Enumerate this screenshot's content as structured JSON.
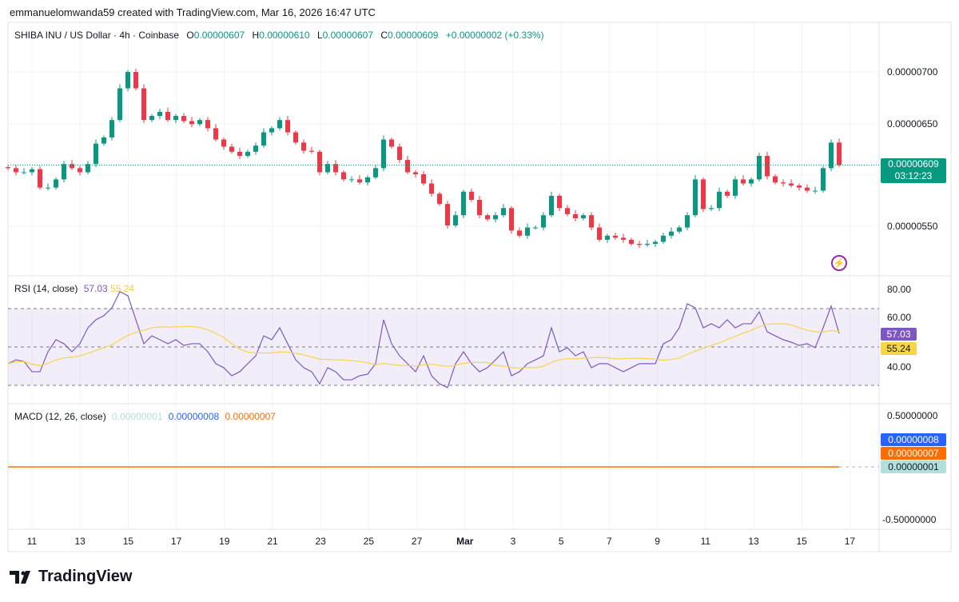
{
  "credit": "emmanuelomwanda59 created with TradingView.com, Mar 16, 2026 16:47 UTC",
  "legend": {
    "symbol": "SHIBA INU / US Dollar · 4h · Coinbase",
    "o_label": "O",
    "o": "0.00000607",
    "h_label": "H",
    "h": "0.00000610",
    "l_label": "L",
    "l": "0.00000607",
    "c_label": "C",
    "c": "0.00000609",
    "change": "+0.00000002 (+0.33%)"
  },
  "price_axis": [
    "0.00000700",
    "0.00000650",
    "0.00000550"
  ],
  "last_price": {
    "value": "0.00000609",
    "countdown": "03:12:23",
    "color": "#089981"
  },
  "rsi": {
    "title": "RSI (14, close)",
    "value": "57.03",
    "ma_value": "55.24",
    "axis": [
      "80.00",
      "60.00",
      "40.00"
    ],
    "line_color": "#7e57c2",
    "ma_color": "#f7d448"
  },
  "macd": {
    "title": "MACD (12, 26, close)",
    "hist": "0.00000001",
    "macd": "0.00000008",
    "signal": "0.00000007",
    "axis": [
      "0.50000000",
      "-0.50000000"
    ],
    "hist_color": "#b2dfdb",
    "macd_color": "#2962ff",
    "signal_color": "#ff6d00"
  },
  "x_labels": [
    "11",
    "13",
    "15",
    "17",
    "19",
    "21",
    "23",
    "25",
    "27",
    "Mar",
    "3",
    "5",
    "7",
    "9",
    "11",
    "13",
    "15",
    "17"
  ],
  "logo": "TradingView",
  "chart_data": {
    "type": "candlestick",
    "unit": "1e-8 USD",
    "title": "SHIBA INU / US Dollar · 4h · Coinbase",
    "ylim": [
      515,
      725
    ],
    "up_color": "#089981",
    "down_color": "#f23645",
    "closes": [
      606,
      602,
      602,
      605,
      587,
      587,
      595,
      610,
      606,
      602,
      610,
      630,
      636,
      653,
      684,
      700,
      684,
      653,
      657,
      661,
      653,
      657,
      652,
      649,
      653,
      645,
      634,
      627,
      622,
      618,
      622,
      628,
      641,
      645,
      653,
      641,
      631,
      623,
      622,
      602,
      610,
      602,
      595,
      595,
      592,
      597,
      606,
      634,
      627,
      614,
      602,
      600,
      591,
      581,
      571,
      550,
      560,
      583,
      575,
      560,
      556,
      560,
      567,
      545,
      540,
      548,
      548,
      560,
      579,
      567,
      561,
      557,
      560,
      548,
      536,
      540,
      538,
      536,
      532,
      531,
      532,
      534,
      540,
      544,
      548,
      560,
      595,
      566,
      567,
      583,
      579,
      595,
      591,
      595,
      618,
      598,
      592,
      591,
      589,
      587,
      584,
      584,
      606,
      631,
      609
    ],
    "rsi": [
      41.3,
      43.3,
      42.5,
      37.1,
      37.1,
      47.5,
      53.8,
      51.7,
      47.5,
      51.7,
      60,
      64.2,
      66.3,
      70.4,
      78.8,
      76.7,
      64.2,
      51.7,
      55.8,
      53.8,
      51.7,
      53.8,
      50.8,
      51.7,
      51.7,
      47.5,
      41.3,
      39.2,
      35,
      37.1,
      41.3,
      45.4,
      55.8,
      53.8,
      60,
      51.7,
      43.3,
      39.2,
      37.1,
      30.8,
      39.2,
      37.1,
      32.9,
      32.9,
      35,
      35.8,
      41.3,
      64.2,
      51.7,
      45.4,
      41.3,
      37.1,
      45.4,
      35,
      30.8,
      28.8,
      41.3,
      47.5,
      41.3,
      37.1,
      39.2,
      43.3,
      47.5,
      35,
      37.1,
      41.3,
      43.3,
      45.4,
      60,
      47.5,
      49.6,
      45.4,
      47.5,
      39.2,
      41.3,
      41.3,
      39.2,
      37.1,
      39.2,
      41.3,
      41.3,
      41.3,
      51.7,
      53.8,
      60,
      72.5,
      70.4,
      60,
      62.1,
      60,
      64.2,
      60,
      62.1,
      62.1,
      68.3,
      57.9,
      55.8,
      53.8,
      52.5,
      50.8,
      51.7,
      49.6,
      60,
      71.3,
      57.03
    ],
    "rsi_bands": [
      70,
      50,
      30
    ],
    "rsi_ylim": [
      20,
      86
    ],
    "macd_ylim": [
      -0.55,
      0.6
    ]
  }
}
